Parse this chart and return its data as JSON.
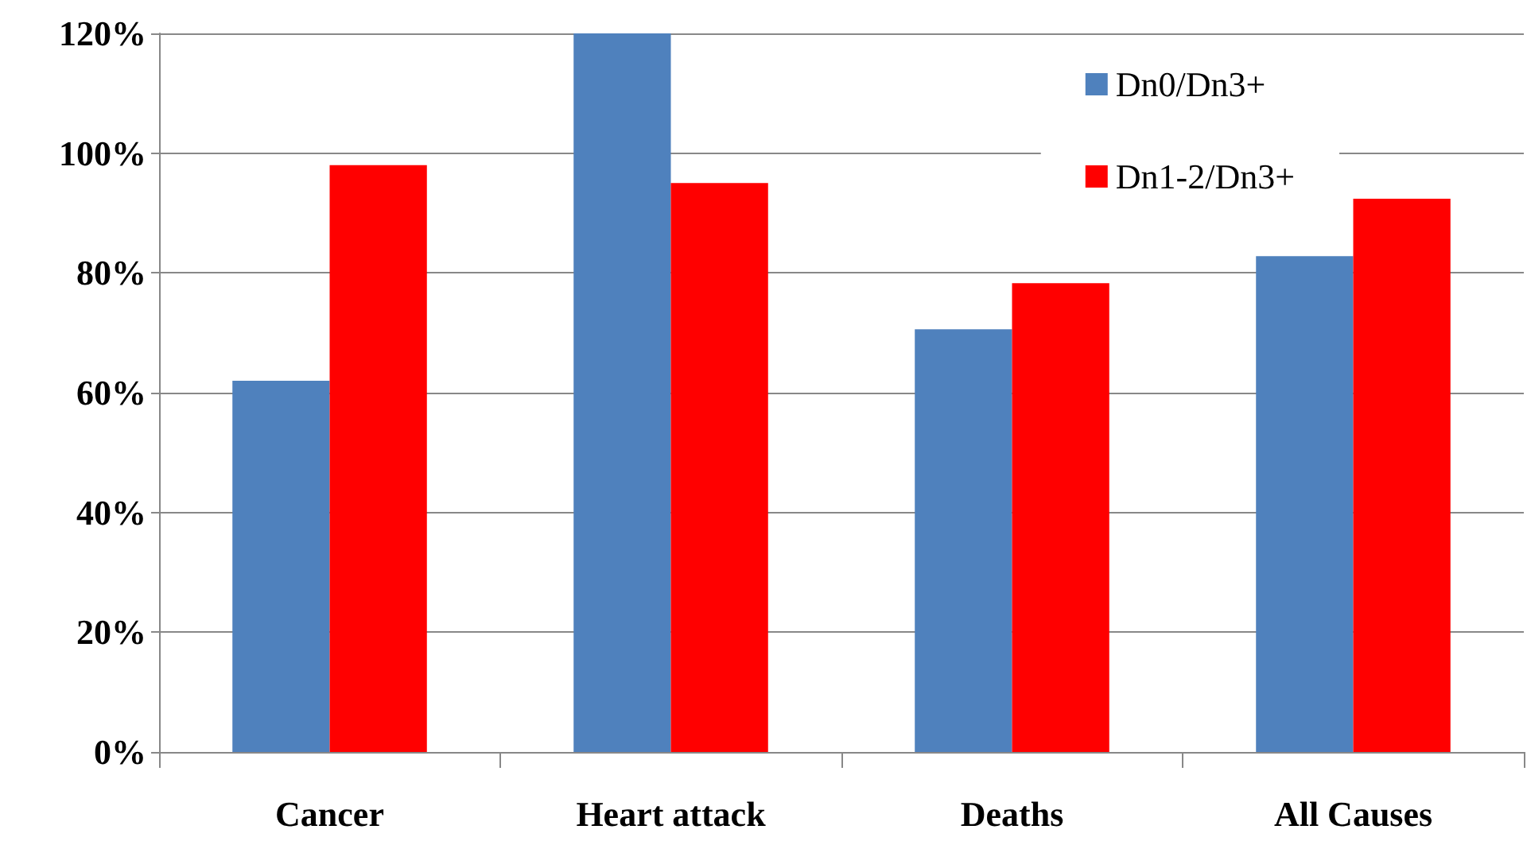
{
  "chart_data": {
    "type": "bar",
    "categories": [
      "Cancer",
      "Heart attack",
      "Deaths",
      "All Causes"
    ],
    "series": [
      {
        "name": "Dn0/Dn3+",
        "color": "#4f81bd",
        "values": [
          62,
          120,
          70.6,
          82.8
        ]
      },
      {
        "name": "Dn1-2/Dn3+",
        "color": "#ff0000",
        "values": [
          98,
          95,
          78.3,
          92.4
        ]
      }
    ],
    "ylim": [
      0,
      120
    ],
    "yticks": [
      {
        "value": 0,
        "label": "0%"
      },
      {
        "value": 20,
        "label": "20%"
      },
      {
        "value": 40,
        "label": "40%"
      },
      {
        "value": 60,
        "label": "60%"
      },
      {
        "value": 80,
        "label": "80%"
      },
      {
        "value": 100,
        "label": "100%"
      },
      {
        "value": 120,
        "label": "120%"
      }
    ],
    "grid": "y",
    "legend": "top right"
  }
}
